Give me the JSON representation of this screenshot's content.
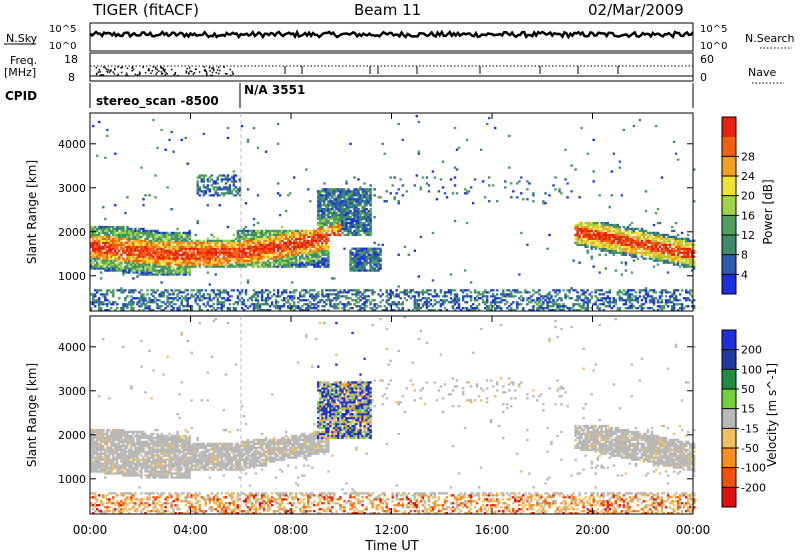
{
  "header": {
    "radar": "TIGER (fitACF)",
    "beam": "Beam 11",
    "date": "02/Mar/2009"
  },
  "strips": {
    "nsky_label": "N.Sky",
    "nsky_ticks": [
      "10^5",
      "10^0"
    ],
    "nsearch_label": "N.Search",
    "nsearch_ticks": [
      "10^5",
      "10^0"
    ],
    "freq_label_1": "Freq.",
    "freq_label_2": "[MHz]",
    "freq_ticks": [
      "18",
      "8"
    ],
    "nave_label": "Nave",
    "nave_ticks": [
      "60",
      "0"
    ],
    "cpid_label": "CPID",
    "cpid_segments": [
      "stereo_scan -8500",
      "N/A 3551"
    ]
  },
  "colors": {
    "power": [
      "#1a2fe0",
      "#2a5aa8",
      "#3f8a6a",
      "#4fa05a",
      "#9ed24a",
      "#f0e030",
      "#f3a020",
      "#f06010",
      "#e82010"
    ],
    "velocity": [
      "#e01010",
      "#f05010",
      "#f59020",
      "#f0c060",
      "#b8b8b8",
      "#70d040",
      "#208a40",
      "#203c9c",
      "#2030d8"
    ]
  },
  "chart_data": [
    {
      "type": "heatmap",
      "title": "",
      "xlabel": "Time UT",
      "ylabel": "Slant Range [km]",
      "x_ticks": [
        "00:00",
        "04:00",
        "08:00",
        "12:00",
        "16:00",
        "20:00",
        "00:00"
      ],
      "xlim_hours": [
        0,
        24
      ],
      "y_ticks": [
        1000,
        2000,
        3000,
        4000
      ],
      "ylim_km": [
        200,
        4700
      ],
      "colorbar_label": "Power [dB]",
      "colorbar_ticks": [
        4,
        8,
        12,
        16,
        20,
        24,
        28
      ],
      "colorbar_range": [
        0,
        30
      ],
      "echo_regions": [
        {
          "t0": 0.0,
          "t1": 5.8,
          "r0": 1000,
          "r1": 2100,
          "level": "high"
        },
        {
          "t0": 5.8,
          "t1": 9.5,
          "r0": 1150,
          "r1": 2000,
          "level": "high"
        },
        {
          "t0": 9.0,
          "t1": 11.2,
          "r0": 1900,
          "r1": 2950,
          "level": "mixed"
        },
        {
          "t0": 10.3,
          "t1": 11.6,
          "r0": 1100,
          "r1": 1600,
          "level": "mixed"
        },
        {
          "t0": 4.2,
          "t1": 6.0,
          "r0": 2800,
          "r1": 3300,
          "level": "low"
        },
        {
          "t0": 19.2,
          "t1": 24.0,
          "r0": 1050,
          "r1": 2200,
          "level": "high"
        },
        {
          "t0": 0.0,
          "t1": 24.0,
          "r0": 200,
          "r1": 650,
          "level": "low"
        }
      ]
    },
    {
      "type": "heatmap",
      "title": "",
      "xlabel": "Time UT",
      "ylabel": "Slant Range [km]",
      "x_ticks": [
        "00:00",
        "04:00",
        "08:00",
        "12:00",
        "16:00",
        "20:00",
        "00:00"
      ],
      "xlim_hours": [
        0,
        24
      ],
      "y_ticks": [
        1000,
        2000,
        3000,
        4000
      ],
      "ylim_km": [
        200,
        4700
      ],
      "colorbar_label": "Velocity [m s^-1]",
      "colorbar_ticks": [
        200,
        100,
        50,
        15,
        -15,
        -50,
        -100,
        -200
      ],
      "colorbar_range": [
        -250,
        250
      ],
      "echo_regions": [
        {
          "t0": 0.0,
          "t1": 9.5,
          "r0": 1000,
          "r1": 2100,
          "level": "ground"
        },
        {
          "t0": 9.0,
          "t1": 11.2,
          "r0": 1900,
          "r1": 3200,
          "level": "mixed"
        },
        {
          "t0": 19.2,
          "t1": 24.0,
          "r0": 1050,
          "r1": 2200,
          "level": "ground"
        },
        {
          "t0": 0.0,
          "t1": 24.0,
          "r0": 200,
          "r1": 650,
          "level": "negative"
        }
      ]
    }
  ]
}
